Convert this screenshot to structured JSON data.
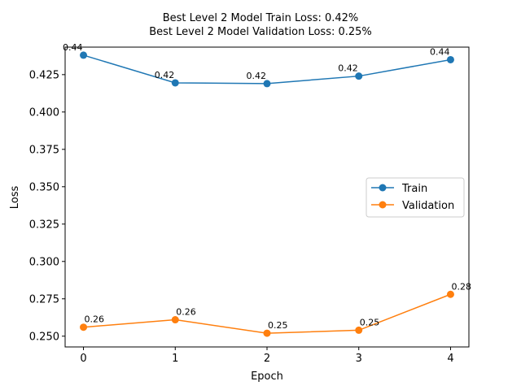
{
  "chart_data": {
    "type": "line",
    "title": [
      "Best Level 2 Model Train Loss: 0.42%",
      "Best Level 2 Model Validation Loss: 0.25%"
    ],
    "xlabel": "Epoch",
    "ylabel": "Loss",
    "x": [
      0,
      1,
      2,
      3,
      4
    ],
    "xlim": [
      -0.2,
      4.2
    ],
    "ylim": [
      0.2428,
      0.4434
    ],
    "yticks": [
      "0.250",
      "0.275",
      "0.300",
      "0.325",
      "0.350",
      "0.375",
      "0.400",
      "0.425"
    ],
    "ytick_values": [
      0.25,
      0.275,
      0.3,
      0.325,
      0.35,
      0.375,
      0.4,
      0.425
    ],
    "grid": false,
    "legend_position": "center-right",
    "series": [
      {
        "name": "Train",
        "color": "#1f77b4",
        "values": [
          0.438,
          0.4195,
          0.419,
          0.424,
          0.435
        ],
        "labels": [
          "0.44",
          "0.42",
          "0.42",
          "0.42",
          "0.44"
        ]
      },
      {
        "name": "Validation",
        "color": "#ff7f0e",
        "values": [
          0.256,
          0.261,
          0.252,
          0.254,
          0.278
        ],
        "labels": [
          "0.26",
          "0.26",
          "0.25",
          "0.25",
          "0.28"
        ]
      }
    ]
  }
}
